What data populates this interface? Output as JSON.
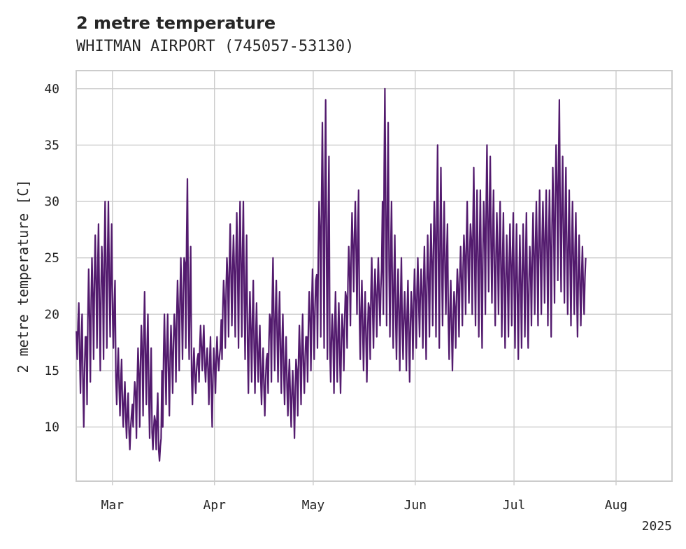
{
  "chart_data": {
    "type": "line",
    "title": "2 metre temperature",
    "subtitle": "WHITMAN AIRPORT (745057-53130)",
    "ylabel": "2 metre temperature [C]",
    "xlabel": "",
    "x_range": [
      "2025-02-18",
      "2025-08-18"
    ],
    "ylim": [
      5.2,
      41.6
    ],
    "y_ticks": [
      10,
      15,
      20,
      25,
      30,
      35,
      40
    ],
    "x_ticks": [
      {
        "date": "2025-03-01",
        "label": "Mar"
      },
      {
        "date": "2025-04-01",
        "label": "Apr"
      },
      {
        "date": "2025-05-01",
        "label": "May"
      },
      {
        "date": "2025-06-01",
        "label": "Jun"
      },
      {
        "date": "2025-07-01",
        "label": "Jul"
      },
      {
        "date": "2025-08-01",
        "label": "Aug"
      }
    ],
    "year_label": "2025",
    "grid": true,
    "series": [
      {
        "color": "#531b6e",
        "start": "2025-02-18",
        "daily_min_max": [
          [
            16,
            21
          ],
          [
            13,
            20
          ],
          [
            10,
            18
          ],
          [
            12,
            24
          ],
          [
            14,
            25
          ],
          [
            16,
            27
          ],
          [
            17,
            28
          ],
          [
            15,
            26
          ],
          [
            16,
            30
          ],
          [
            17,
            30
          ],
          [
            18,
            28
          ],
          [
            17,
            23
          ],
          [
            12,
            17
          ],
          [
            11,
            16
          ],
          [
            10,
            14
          ],
          [
            9,
            13
          ],
          [
            8,
            11
          ],
          [
            10,
            14
          ],
          [
            9,
            17
          ],
          [
            10,
            19
          ],
          [
            11,
            22
          ],
          [
            12,
            20
          ],
          [
            9,
            17
          ],
          [
            8,
            11
          ],
          [
            8,
            13
          ],
          [
            7,
            9
          ],
          [
            10,
            20
          ],
          [
            12,
            20
          ],
          [
            11,
            19
          ],
          [
            13,
            20
          ],
          [
            14,
            23
          ],
          [
            15,
            25
          ],
          [
            16,
            25
          ],
          [
            17,
            32
          ],
          [
            16,
            26
          ],
          [
            12,
            17
          ],
          [
            13,
            16
          ],
          [
            14,
            19
          ],
          [
            15,
            19
          ],
          [
            14,
            17
          ],
          [
            12,
            18
          ],
          [
            10,
            17
          ],
          [
            13,
            18
          ],
          [
            15,
            17
          ],
          [
            16,
            23
          ],
          [
            17,
            25
          ],
          [
            18,
            28
          ],
          [
            19,
            27
          ],
          [
            18,
            29
          ],
          [
            17,
            30
          ],
          [
            18,
            30
          ],
          [
            16,
            27
          ],
          [
            13,
            22
          ],
          [
            14,
            23
          ],
          [
            13,
            21
          ],
          [
            14,
            19
          ],
          [
            12,
            17
          ],
          [
            11,
            16
          ],
          [
            13,
            20
          ],
          [
            14,
            25
          ],
          [
            15,
            23
          ],
          [
            14,
            22
          ],
          [
            13,
            20
          ],
          [
            12,
            18
          ],
          [
            11,
            16
          ],
          [
            10,
            15
          ],
          [
            9,
            16
          ],
          [
            11,
            19
          ],
          [
            12,
            20
          ],
          [
            13,
            18
          ],
          [
            14,
            22
          ],
          [
            15,
            24
          ],
          [
            16,
            23
          ],
          [
            17,
            30
          ],
          [
            18,
            37
          ],
          [
            17,
            39
          ],
          [
            16,
            34
          ],
          [
            14,
            20
          ],
          [
            13,
            22
          ],
          [
            14,
            21
          ],
          [
            13,
            20
          ],
          [
            15,
            22
          ],
          [
            17,
            26
          ],
          [
            19,
            29
          ],
          [
            22,
            30
          ],
          [
            20,
            31
          ],
          [
            16,
            23
          ],
          [
            15,
            22
          ],
          [
            14,
            21
          ],
          [
            16,
            25
          ],
          [
            17,
            24
          ],
          [
            18,
            25
          ],
          [
            19,
            24
          ],
          [
            20,
            40
          ],
          [
            19,
            37
          ],
          [
            18,
            30
          ],
          [
            17,
            27
          ],
          [
            16,
            24
          ],
          [
            15,
            25
          ],
          [
            16,
            22
          ],
          [
            15,
            23
          ],
          [
            14,
            22
          ],
          [
            16,
            24
          ],
          [
            17,
            25
          ],
          [
            18,
            24
          ],
          [
            17,
            26
          ],
          [
            16,
            27
          ],
          [
            18,
            28
          ],
          [
            19,
            30
          ],
          [
            18,
            35
          ],
          [
            17,
            33
          ],
          [
            19,
            30
          ],
          [
            20,
            28
          ],
          [
            16,
            23
          ],
          [
            15,
            22
          ],
          [
            17,
            24
          ],
          [
            18,
            26
          ],
          [
            19,
            27
          ],
          [
            20,
            30
          ],
          [
            21,
            28
          ],
          [
            20,
            33
          ],
          [
            19,
            31
          ],
          [
            18,
            31
          ],
          [
            17,
            30
          ],
          [
            20,
            35
          ],
          [
            22,
            34
          ],
          [
            21,
            31
          ],
          [
            19,
            29
          ],
          [
            20,
            30
          ],
          [
            18,
            29
          ],
          [
            17,
            27
          ],
          [
            18,
            28
          ],
          [
            19,
            29
          ],
          [
            17,
            28
          ],
          [
            16,
            27
          ],
          [
            17,
            28
          ],
          [
            18,
            29
          ],
          [
            17,
            26
          ],
          [
            19,
            29
          ],
          [
            20,
            30
          ],
          [
            19,
            31
          ],
          [
            20,
            30
          ],
          [
            21,
            31
          ],
          [
            19,
            31
          ],
          [
            18,
            33
          ],
          [
            21,
            35
          ],
          [
            23,
            39
          ],
          [
            22,
            34
          ],
          [
            21,
            33
          ],
          [
            20,
            31
          ],
          [
            19,
            30
          ],
          [
            20,
            29
          ],
          [
            18,
            27
          ],
          [
            19,
            26
          ],
          [
            20,
            25
          ]
        ]
      }
    ]
  }
}
